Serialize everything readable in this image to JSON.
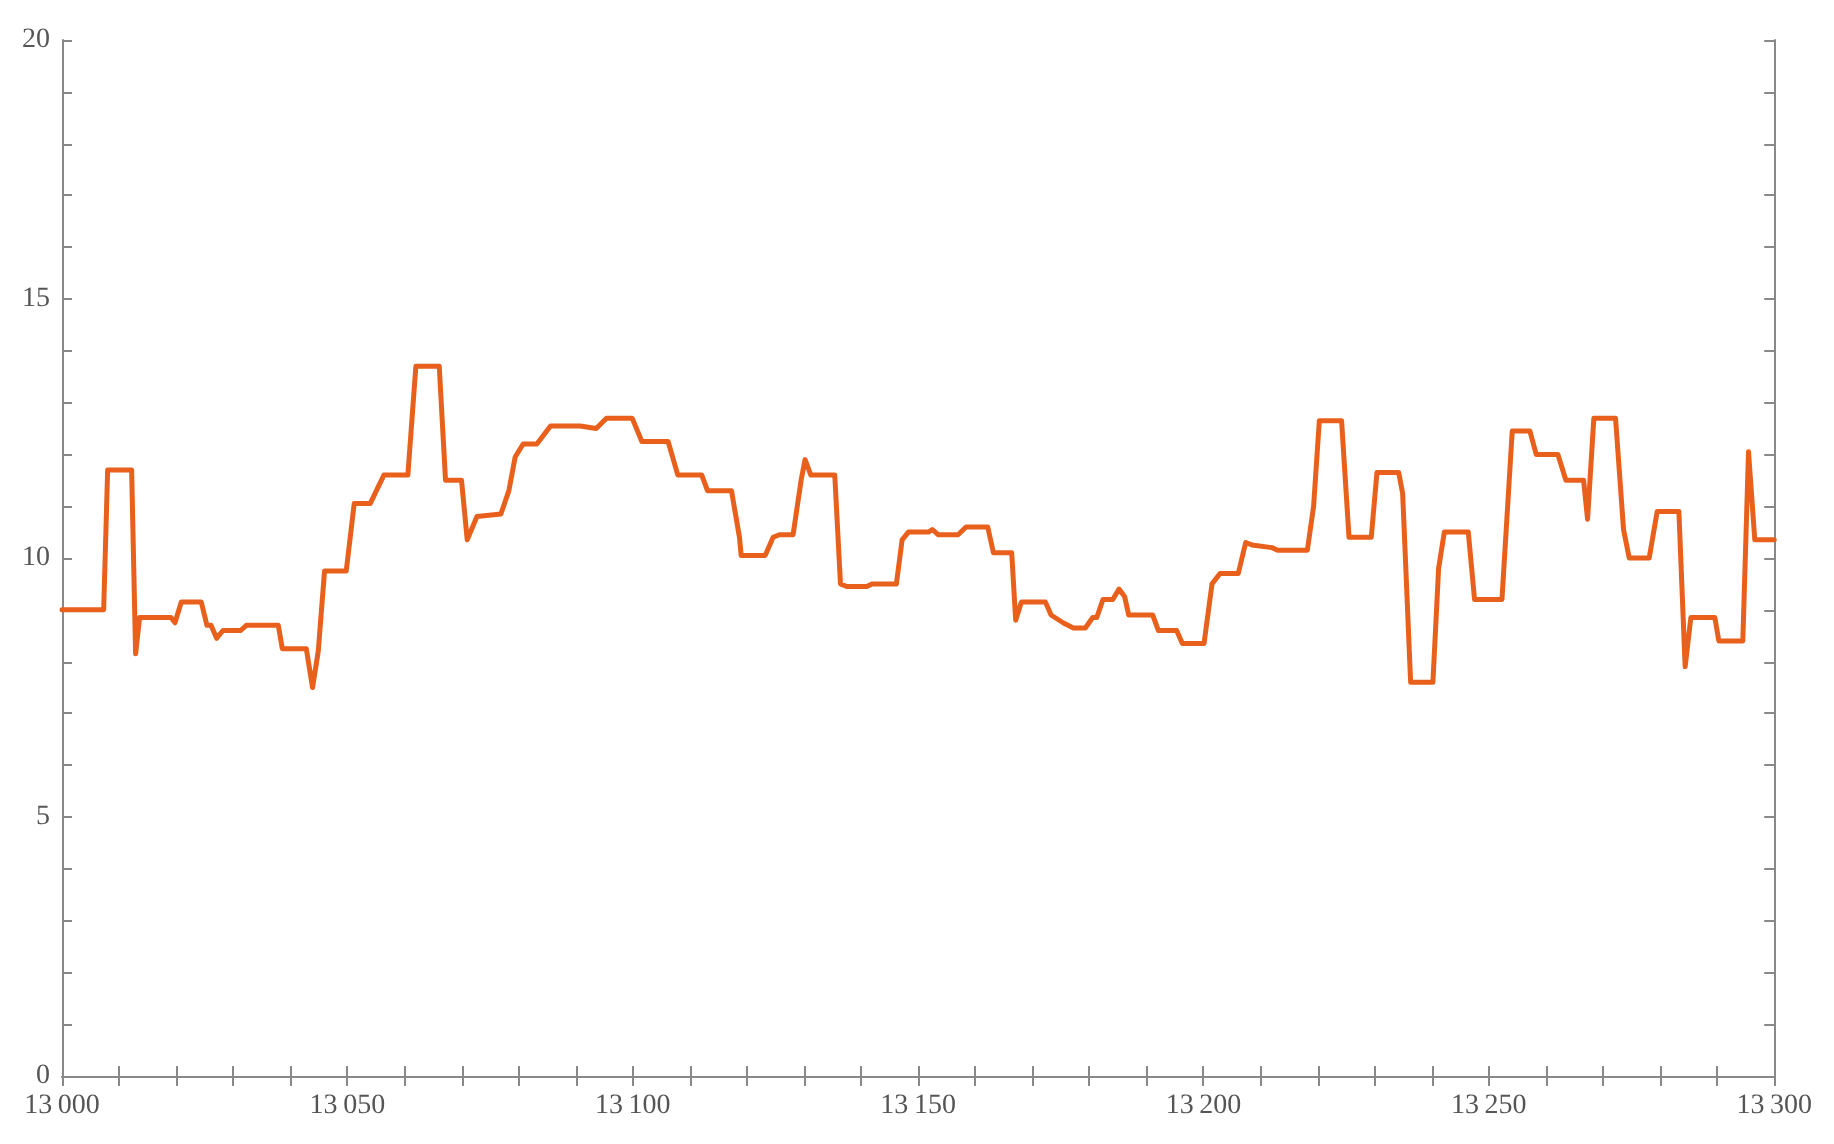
{
  "chart_data": {
    "type": "line",
    "xlim": [
      13000,
      13300
    ],
    "ylim": [
      0,
      20
    ],
    "xticks": [
      {
        "value": 13000,
        "label": "13 000"
      },
      {
        "value": 13010,
        "label": null
      },
      {
        "value": 13020,
        "label": null
      },
      {
        "value": 13030,
        "label": null
      },
      {
        "value": 13040,
        "label": null
      },
      {
        "value": 13050,
        "label": "13 050"
      },
      {
        "value": 13060,
        "label": null
      },
      {
        "value": 13070,
        "label": null
      },
      {
        "value": 13080,
        "label": null
      },
      {
        "value": 13090,
        "label": null
      },
      {
        "value": 13100,
        "label": "13 100"
      },
      {
        "value": 13110,
        "label": null
      },
      {
        "value": 13120,
        "label": null
      },
      {
        "value": 13130,
        "label": null
      },
      {
        "value": 13140,
        "label": null
      },
      {
        "value": 13150,
        "label": "13 150"
      },
      {
        "value": 13160,
        "label": null
      },
      {
        "value": 13170,
        "label": null
      },
      {
        "value": 13180,
        "label": null
      },
      {
        "value": 13190,
        "label": null
      },
      {
        "value": 13200,
        "label": "13 200"
      },
      {
        "value": 13210,
        "label": null
      },
      {
        "value": 13220,
        "label": null
      },
      {
        "value": 13230,
        "label": null
      },
      {
        "value": 13240,
        "label": null
      },
      {
        "value": 13250,
        "label": "13 250"
      },
      {
        "value": 13260,
        "label": null
      },
      {
        "value": 13270,
        "label": null
      },
      {
        "value": 13280,
        "label": null
      },
      {
        "value": 13290,
        "label": null
      },
      {
        "value": 13300,
        "label": "13 300"
      }
    ],
    "yticks": [
      0,
      {
        "value": 1,
        "label": null
      },
      {
        "value": 2,
        "label": null
      },
      {
        "value": 3,
        "label": null
      },
      {
        "value": 4,
        "label": null
      },
      5,
      {
        "value": 6,
        "label": null
      },
      {
        "value": 7,
        "label": null
      },
      {
        "value": 8,
        "label": null
      },
      {
        "value": 9,
        "label": null
      },
      10,
      {
        "value": 11,
        "label": null
      },
      {
        "value": 12,
        "label": null
      },
      {
        "value": 13,
        "label": null
      },
      {
        "value": 14,
        "label": null
      },
      15,
      {
        "value": 16,
        "label": null
      },
      {
        "value": 17,
        "label": null
      },
      {
        "value": 18,
        "label": null
      },
      {
        "value": 19,
        "label": null
      },
      20
    ],
    "grid": false,
    "marker": "none",
    "line_style": "solid",
    "series": [
      {
        "color": "#e8601c",
        "x": [
          13000,
          13007.3,
          13008,
          13012.2,
          13012.9,
          13013.6,
          13019.1,
          13019.8,
          13020.9,
          13024.4,
          13025.4,
          13026.1,
          13027.1,
          13028.2,
          13031.3,
          13032.3,
          13037.9,
          13038.6,
          13042.8,
          13043.9,
          13044.9,
          13046,
          13049.8,
          13051.2,
          13054,
          13055.3,
          13056.4,
          13060.6,
          13062,
          13066.1,
          13067.2,
          13070,
          13071,
          13072.7,
          13076.9,
          13078.3,
          13079.4,
          13080.8,
          13083.2,
          13085.6,
          13090.8,
          13093.6,
          13095.4,
          13099.9,
          13101.6,
          13106.2,
          13107.9,
          13112.1,
          13113.1,
          13117.3,
          13118.7,
          13119,
          13123.2,
          13124.6,
          13125.7,
          13128.1,
          13129.5,
          13130.2,
          13131.2,
          13135.4,
          13136.4,
          13137.5,
          13141,
          13142,
          13146.2,
          13147.2,
          13148.3,
          13151.8,
          13152.5,
          13153.5,
          13157,
          13158.4,
          13162.2,
          13163.2,
          13166.4,
          13167.1,
          13168.1,
          13172.3,
          13173.3,
          13175.4,
          13177.2,
          13179.3,
          13180.6,
          13181.3,
          13182.4,
          13184.1,
          13185.2,
          13186.2,
          13186.9,
          13191.1,
          13192.1,
          13195.3,
          13196.3,
          13200.1,
          13201.5,
          13202.9,
          13206.1,
          13207.4,
          13208.5,
          13212,
          13213,
          13218.2,
          13219.3,
          13220.3,
          13224.2,
          13225.5,
          13229.4,
          13230.4,
          13234.2,
          13234.9,
          13236.3,
          13240.2,
          13241.2,
          13242.2,
          13246.4,
          13247.5,
          13252.3,
          13254.1,
          13257.2,
          13258.3,
          13262.1,
          13263.5,
          13266.6,
          13267.3,
          13268.4,
          13272.2,
          13273.6,
          13274.6,
          13278.1,
          13279.5,
          13283.3,
          13284.4,
          13285.4,
          13289.6,
          13290.3,
          13294.5,
          13295.5,
          13296.6,
          13300
        ],
        "values": [
          9,
          9,
          11.7,
          11.7,
          8.15,
          8.85,
          8.85,
          8.75,
          9.15,
          9.15,
          8.7,
          8.7,
          8.45,
          8.6,
          8.6,
          8.7,
          8.7,
          8.25,
          8.25,
          7.5,
          8.2,
          9.75,
          9.75,
          11.05,
          11.05,
          11.35,
          11.6,
          11.6,
          13.7,
          13.7,
          11.5,
          11.5,
          10.35,
          10.8,
          10.85,
          11.3,
          11.95,
          12.2,
          12.2,
          12.55,
          12.55,
          12.5,
          12.7,
          12.7,
          12.25,
          12.25,
          11.6,
          11.6,
          11.3,
          11.3,
          10.4,
          10.05,
          10.05,
          10.4,
          10.45,
          10.45,
          11.5,
          11.9,
          11.6,
          11.6,
          9.5,
          9.45,
          9.45,
          9.5,
          9.5,
          10.35,
          10.5,
          10.5,
          10.55,
          10.45,
          10.45,
          10.6,
          10.6,
          10.1,
          10.1,
          8.8,
          9.15,
          9.15,
          8.9,
          8.75,
          8.65,
          8.65,
          8.85,
          8.85,
          9.2,
          9.2,
          9.4,
          9.25,
          8.9,
          8.9,
          8.6,
          8.6,
          8.35,
          8.35,
          9.5,
          9.7,
          9.7,
          10.3,
          10.25,
          10.2,
          10.15,
          10.15,
          11,
          12.65,
          12.65,
          10.4,
          10.4,
          11.65,
          11.65,
          11.25,
          7.6,
          7.6,
          9.8,
          10.5,
          10.5,
          9.2,
          9.2,
          12.45,
          12.45,
          12,
          12,
          11.5,
          11.5,
          10.75,
          12.7,
          12.7,
          10.55,
          10,
          10,
          10.9,
          10.9,
          7.9,
          8.85,
          8.85,
          8.4,
          8.4,
          12.05,
          10.35,
          10.35
        ]
      }
    ]
  }
}
